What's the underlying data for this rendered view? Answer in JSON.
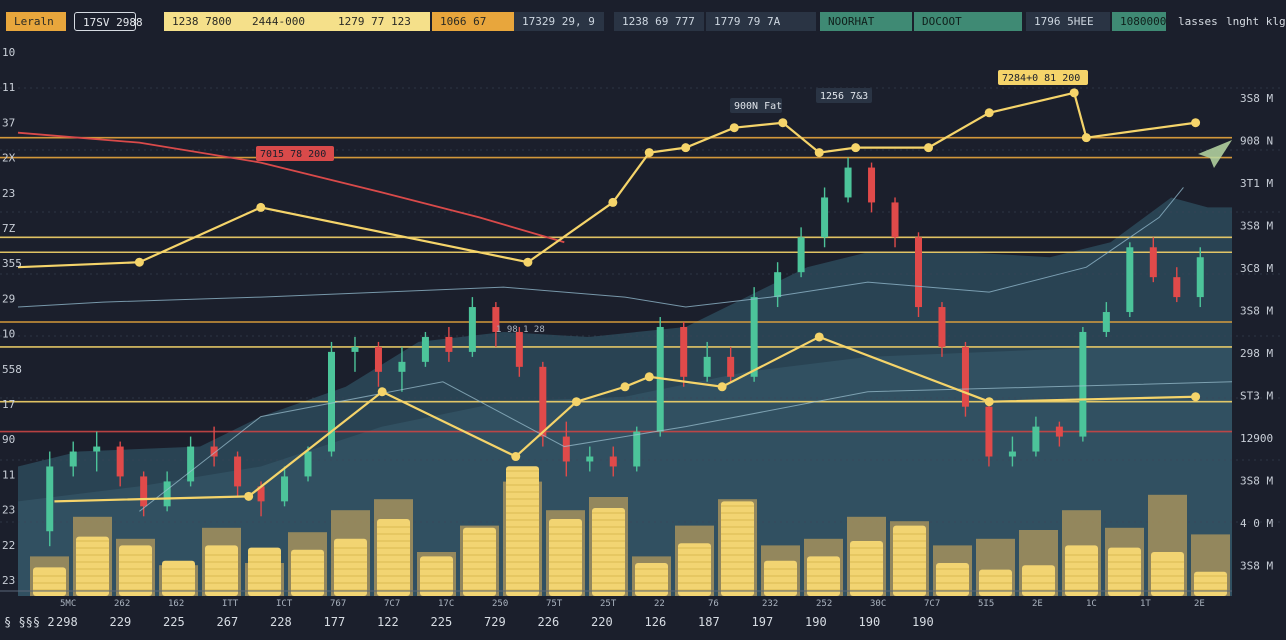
{
  "topbar": {
    "cells": [
      {
        "label": "Leraln",
        "style": "tb-orange"
      },
      {
        "label": "17SV 2988",
        "style": "tb-outline"
      },
      {
        "label": "1238 7800",
        "style": "tb-yellow"
      },
      {
        "label": "2444-000",
        "style": "tb-yellow"
      },
      {
        "label": "1279 77 123",
        "style": "tb-yellow"
      },
      {
        "label": "1066 67",
        "style": "tb-orange"
      },
      {
        "label": "17329 29, 9",
        "style": "tb-slate"
      },
      {
        "label": "1238 69 777",
        "style": "tb-slate"
      },
      {
        "label": "1779 79 7A",
        "style": "tb-slate"
      },
      {
        "label": "NOORHAT",
        "style": "tb-green"
      },
      {
        "label": "DOCOOT",
        "style": "tb-green"
      },
      {
        "label": "1796 5HEE",
        "style": "tb-slate"
      },
      {
        "label": "1080000",
        "style": "tb-green"
      },
      {
        "label": "lasses",
        "style": "tb-dark"
      },
      {
        "label": "lnght klg",
        "style": "tb-dark"
      }
    ]
  },
  "chart_data": {
    "type": "candlestick",
    "left_axis_labels": [
      "10",
      "11",
      "37",
      "2X",
      "23",
      "7Z",
      "355",
      "29",
      "10",
      "558",
      "17",
      "90",
      "11",
      "23",
      "22",
      "23"
    ],
    "right_axis_labels": [
      "3S8 M",
      "908 N",
      "3T1 M",
      "3S8 M",
      "3C8 M",
      "3S8 M",
      "298 M",
      "ST3 M",
      "12900",
      "3S8 M",
      "4 0 M",
      "3S8 M"
    ],
    "bottom_labels": [
      "298",
      "229",
      "225",
      "267",
      "228",
      "177",
      "122",
      "225",
      "729",
      "226",
      "220",
      "126",
      "187",
      "197",
      "190",
      "190",
      "190"
    ],
    "bottom_small_labels": [
      "5MC",
      "262",
      "162",
      "ITT",
      "ICT",
      "767",
      "7C7",
      "17C",
      "250",
      "75T",
      "25T",
      "22",
      "76",
      "232",
      "252",
      "30C",
      "7C7",
      "5I5",
      "2E",
      "1C",
      "1T",
      "2E"
    ],
    "bottom_prefix": "§ §§§ 2",
    "callouts": [
      {
        "text": "7015 78 200"
      },
      {
        "text": "900N Fat"
      },
      {
        "text": "1256 7&3"
      },
      {
        "text": "7284+0 81 200"
      }
    ],
    "mid_label": "1 98 1 28",
    "candles": [
      {
        "o": 1.3,
        "c": 2.6,
        "h": 2.9,
        "l": 1.0
      },
      {
        "o": 2.6,
        "c": 2.9,
        "h": 3.1,
        "l": 2.4
      },
      {
        "o": 2.9,
        "c": 3.0,
        "h": 3.3,
        "l": 2.5
      },
      {
        "o": 3.0,
        "c": 2.4,
        "h": 3.1,
        "l": 2.2
      },
      {
        "o": 2.4,
        "c": 1.8,
        "h": 2.5,
        "l": 1.6
      },
      {
        "o": 1.8,
        "c": 2.3,
        "h": 2.5,
        "l": 1.7
      },
      {
        "o": 2.3,
        "c": 3.0,
        "h": 3.2,
        "l": 2.2
      },
      {
        "o": 3.0,
        "c": 2.8,
        "h": 3.4,
        "l": 2.6
      },
      {
        "o": 2.8,
        "c": 2.2,
        "h": 2.9,
        "l": 2.0
      },
      {
        "o": 2.2,
        "c": 1.9,
        "h": 2.3,
        "l": 1.6
      },
      {
        "o": 1.9,
        "c": 2.4,
        "h": 2.6,
        "l": 1.8
      },
      {
        "o": 2.4,
        "c": 2.9,
        "h": 3.0,
        "l": 2.3
      },
      {
        "o": 2.9,
        "c": 4.9,
        "h": 5.1,
        "l": 2.8
      },
      {
        "o": 4.9,
        "c": 5.0,
        "h": 5.2,
        "l": 4.5
      },
      {
        "o": 5.0,
        "c": 4.5,
        "h": 5.1,
        "l": 4.2
      },
      {
        "o": 4.5,
        "c": 4.7,
        "h": 5.0,
        "l": 4.1
      },
      {
        "o": 4.7,
        "c": 5.2,
        "h": 5.3,
        "l": 4.6
      },
      {
        "o": 5.2,
        "c": 4.9,
        "h": 5.4,
        "l": 4.7
      },
      {
        "o": 4.9,
        "c": 5.8,
        "h": 6.0,
        "l": 4.8
      },
      {
        "o": 5.8,
        "c": 5.3,
        "h": 5.9,
        "l": 5.0
      },
      {
        "o": 5.3,
        "c": 4.6,
        "h": 5.4,
        "l": 4.4
      },
      {
        "o": 4.6,
        "c": 3.2,
        "h": 4.7,
        "l": 3.0
      },
      {
        "o": 3.2,
        "c": 2.7,
        "h": 3.5,
        "l": 2.4
      },
      {
        "o": 2.7,
        "c": 2.8,
        "h": 3.0,
        "l": 2.5
      },
      {
        "o": 2.8,
        "c": 2.6,
        "h": 3.0,
        "l": 2.4
      },
      {
        "o": 2.6,
        "c": 3.3,
        "h": 3.4,
        "l": 2.5
      },
      {
        "o": 3.3,
        "c": 5.4,
        "h": 5.6,
        "l": 3.2
      },
      {
        "o": 5.4,
        "c": 4.4,
        "h": 5.5,
        "l": 4.2
      },
      {
        "o": 4.4,
        "c": 4.8,
        "h": 5.1,
        "l": 4.3
      },
      {
        "o": 4.8,
        "c": 4.4,
        "h": 5.0,
        "l": 4.3
      },
      {
        "o": 4.4,
        "c": 6.0,
        "h": 6.2,
        "l": 4.3
      },
      {
        "o": 6.0,
        "c": 6.5,
        "h": 6.7,
        "l": 5.8
      },
      {
        "o": 6.5,
        "c": 7.2,
        "h": 7.4,
        "l": 6.4
      },
      {
        "o": 7.2,
        "c": 8.0,
        "h": 8.2,
        "l": 7.0
      },
      {
        "o": 8.0,
        "c": 8.6,
        "h": 8.8,
        "l": 7.9
      },
      {
        "o": 8.6,
        "c": 7.9,
        "h": 8.7,
        "l": 7.7
      },
      {
        "o": 7.9,
        "c": 7.2,
        "h": 8.0,
        "l": 7.0
      },
      {
        "o": 7.2,
        "c": 5.8,
        "h": 7.3,
        "l": 5.6
      },
      {
        "o": 5.8,
        "c": 5.0,
        "h": 5.9,
        "l": 4.8
      },
      {
        "o": 5.0,
        "c": 3.8,
        "h": 5.1,
        "l": 3.6
      },
      {
        "o": 3.8,
        "c": 2.8,
        "h": 3.9,
        "l": 2.6
      },
      {
        "o": 2.8,
        "c": 2.9,
        "h": 3.2,
        "l": 2.6
      },
      {
        "o": 2.9,
        "c": 3.4,
        "h": 3.6,
        "l": 2.8
      },
      {
        "o": 3.4,
        "c": 3.2,
        "h": 3.5,
        "l": 3.0
      },
      {
        "o": 3.2,
        "c": 5.3,
        "h": 5.4,
        "l": 3.1
      },
      {
        "o": 5.3,
        "c": 5.7,
        "h": 5.9,
        "l": 5.2
      },
      {
        "o": 5.7,
        "c": 7.0,
        "h": 7.1,
        "l": 5.6
      },
      {
        "o": 7.0,
        "c": 6.4,
        "h": 7.2,
        "l": 6.3
      },
      {
        "o": 6.4,
        "c": 6.0,
        "h": 6.6,
        "l": 5.9
      },
      {
        "o": 6.0,
        "c": 6.8,
        "h": 7.0,
        "l": 5.8
      }
    ],
    "yellow_line": [
      {
        "x": 0,
        "y": 6.6
      },
      {
        "x": 0.1,
        "y": 6.7
      },
      {
        "x": 0.2,
        "y": 7.8
      },
      {
        "x": 0.42,
        "y": 6.7
      },
      {
        "x": 0.49,
        "y": 7.9
      },
      {
        "x": 0.52,
        "y": 8.9
      },
      {
        "x": 0.55,
        "y": 9.0
      },
      {
        "x": 0.59,
        "y": 9.4
      },
      {
        "x": 0.63,
        "y": 9.5
      },
      {
        "x": 0.66,
        "y": 8.9
      },
      {
        "x": 0.69,
        "y": 9.0
      },
      {
        "x": 0.75,
        "y": 9.0
      },
      {
        "x": 0.8,
        "y": 9.7
      },
      {
        "x": 0.87,
        "y": 10.1
      },
      {
        "x": 0.88,
        "y": 9.2
      },
      {
        "x": 0.97,
        "y": 9.5
      }
    ],
    "yellow_line_lower": [
      {
        "x": 0.03,
        "y": 1.9
      },
      {
        "x": 0.19,
        "y": 2.0
      },
      {
        "x": 0.3,
        "y": 4.1
      },
      {
        "x": 0.41,
        "y": 2.8
      },
      {
        "x": 0.46,
        "y": 3.9
      },
      {
        "x": 0.5,
        "y": 4.2
      },
      {
        "x": 0.52,
        "y": 4.4
      },
      {
        "x": 0.58,
        "y": 4.2
      },
      {
        "x": 0.66,
        "y": 5.2
      },
      {
        "x": 0.8,
        "y": 3.9
      },
      {
        "x": 0.97,
        "y": 4.0
      }
    ],
    "red_line": [
      {
        "x": 0,
        "y": 9.3
      },
      {
        "x": 0.1,
        "y": 9.1
      },
      {
        "x": 0.2,
        "y": 8.7
      },
      {
        "x": 0.3,
        "y": 8.1
      },
      {
        "x": 0.38,
        "y": 7.6
      },
      {
        "x": 0.45,
        "y": 7.1
      }
    ],
    "volumes": [
      1.3,
      2.7,
      2.3,
      1.6,
      2.3,
      2.2,
      2.1,
      2.6,
      3.5,
      1.8,
      3.1,
      5.9,
      3.5,
      4.0,
      1.5,
      2.4,
      4.3,
      1.6,
      1.8,
      2.5,
      3.2,
      1.5,
      1.2,
      1.4,
      2.3,
      2.2,
      2.0,
      1.1
    ],
    "volumes_ghost": [
      1.8,
      3.6,
      2.6,
      1.4,
      3.1,
      1.5,
      2.9,
      3.9,
      4.4,
      2.0,
      3.2,
      5.2,
      3.9,
      4.5,
      1.8,
      3.2,
      4.4,
      2.3,
      2.6,
      3.6,
      3.4,
      2.3,
      2.6,
      3.0,
      3.9,
      3.1,
      4.6,
      2.8
    ],
    "hlines": [
      {
        "y": 9.2,
        "color": "#e8a63c"
      },
      {
        "y": 8.8,
        "color": "#e8a63c"
      },
      {
        "y": 7.2,
        "color": "#f5d46a"
      },
      {
        "y": 6.9,
        "color": "#f5d46a"
      },
      {
        "y": 5.5,
        "color": "#e8a63c"
      },
      {
        "y": 5.0,
        "color": "#f5d46a"
      },
      {
        "y": 3.9,
        "color": "#f5d46a"
      },
      {
        "y": 3.3,
        "color": "#c94545"
      }
    ],
    "colors": {
      "up": "#4cc49a",
      "down": "#e04a4a",
      "yellow": "#f5d46a",
      "orange": "#e8a63c",
      "red_line": "#d94a4a",
      "area_fill": "#2c4a5a",
      "area_fill2": "#375a6a",
      "bar_fill": "#f2d472",
      "bar_ghost": "#b49a5c",
      "grid": "#3a4456"
    }
  }
}
